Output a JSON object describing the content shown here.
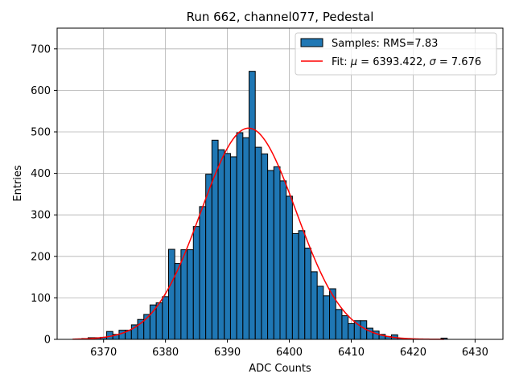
{
  "chart_data": {
    "type": "bar",
    "title": "Run 662, channel077, Pedestal",
    "xlabel": "ADC Counts",
    "ylabel": "Entries",
    "xlim": [
      6362.5,
      6434.5
    ],
    "ylim": [
      0,
      750
    ],
    "xticks": [
      6370,
      6380,
      6390,
      6400,
      6410,
      6420,
      6430
    ],
    "yticks": [
      0,
      100,
      200,
      300,
      400,
      500,
      600,
      700
    ],
    "grid": true,
    "legend_position": "top-right",
    "bin_width": 1,
    "bin_centers": [
      6364,
      6365,
      6366,
      6367,
      6368,
      6369,
      6370,
      6371,
      6372,
      6373,
      6374,
      6375,
      6376,
      6377,
      6378,
      6379,
      6380,
      6381,
      6382,
      6383,
      6384,
      6385,
      6386,
      6387,
      6388,
      6389,
      6390,
      6391,
      6392,
      6393,
      6394,
      6395,
      6396,
      6397,
      6398,
      6399,
      6400,
      6401,
      6402,
      6403,
      6404,
      6405,
      6406,
      6407,
      6408,
      6409,
      6410,
      6411,
      6412,
      6413,
      6414,
      6415,
      6416,
      6417,
      6418,
      6419,
      6420,
      6421,
      6422,
      6423,
      6424,
      6425
    ],
    "series": [
      {
        "name": "Samples: RMS=7.83",
        "type": "histogram",
        "color": "#1f77b4",
        "edge_color": "#000000",
        "values": [
          0,
          0,
          0,
          2,
          4,
          4,
          5,
          19,
          12,
          22,
          22,
          35,
          48,
          60,
          83,
          88,
          103,
          217,
          183,
          216,
          216,
          272,
          320,
          398,
          480,
          457,
          448,
          440,
          498,
          486,
          646,
          463,
          447,
          407,
          416,
          382,
          345,
          255,
          262,
          220,
          163,
          128,
          105,
          122,
          72,
          57,
          38,
          45,
          45,
          27,
          20,
          12,
          7,
          11,
          3,
          2,
          1,
          0,
          1,
          0,
          0,
          3
        ]
      },
      {
        "name": "Fit: μ = 6393.422, σ = 7.676",
        "type": "gaussian-fit",
        "color": "#ff0000",
        "mu": 6393.422,
        "sigma": 7.676,
        "amplitude": 509,
        "x_range": [
          6365,
          6425
        ]
      }
    ],
    "legend": [
      {
        "label": "Samples: RMS=7.83",
        "kind": "patch",
        "color": "#1f77b4"
      },
      {
        "label_prefix": "Fit: ",
        "mu_symbol": "μ",
        "mu_text": " = 6393.422, ",
        "sigma_symbol": "σ",
        "sigma_text": " = 7.676",
        "kind": "line",
        "color": "#ff0000"
      }
    ]
  }
}
